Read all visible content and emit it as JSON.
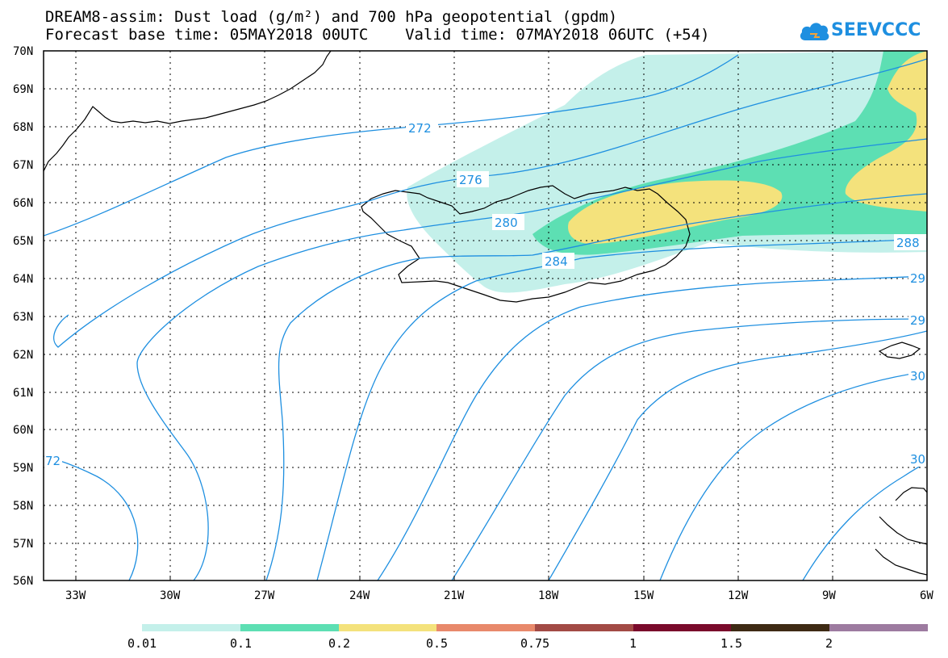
{
  "header": {
    "title_line1": "DREAM8-assim: Dust load (g/m²) and 700 hPa geopotential (gpdm)",
    "title_line2": "Forecast base time: 05MAY2018 00UTC    Valid time: 07MAY2018 06UTC (+54)"
  },
  "logo": {
    "text": "SEEVCCC",
    "icon": "cloud-icon",
    "color": "#1e8fe0"
  },
  "map": {
    "lat_labels": [
      "70N",
      "69N",
      "68N",
      "67N",
      "66N",
      "65N",
      "64N",
      "63N",
      "62N",
      "61N",
      "60N",
      "59N",
      "58N",
      "57N",
      "56N"
    ],
    "lon_labels": [
      "33W",
      "30W",
      "27W",
      "24W",
      "21W",
      "18W",
      "15W",
      "12W",
      "9W",
      "6W"
    ],
    "contour_labels": [
      "272",
      "276",
      "280",
      "284",
      "288",
      "29",
      "29",
      "30",
      "30",
      "72"
    ],
    "contour_color": "#1e8fe0"
  },
  "legend": {
    "colors": [
      "#c4f0ea",
      "#5ddfb3",
      "#f4e27c",
      "#e8896b",
      "#a24a45",
      "#7a0a2b",
      "#3e2a14",
      "#9d7ba0"
    ],
    "labels": [
      "0.01",
      "0.1",
      "0.2",
      "0.5",
      "0.75",
      "1",
      "1.5",
      "2"
    ]
  }
}
